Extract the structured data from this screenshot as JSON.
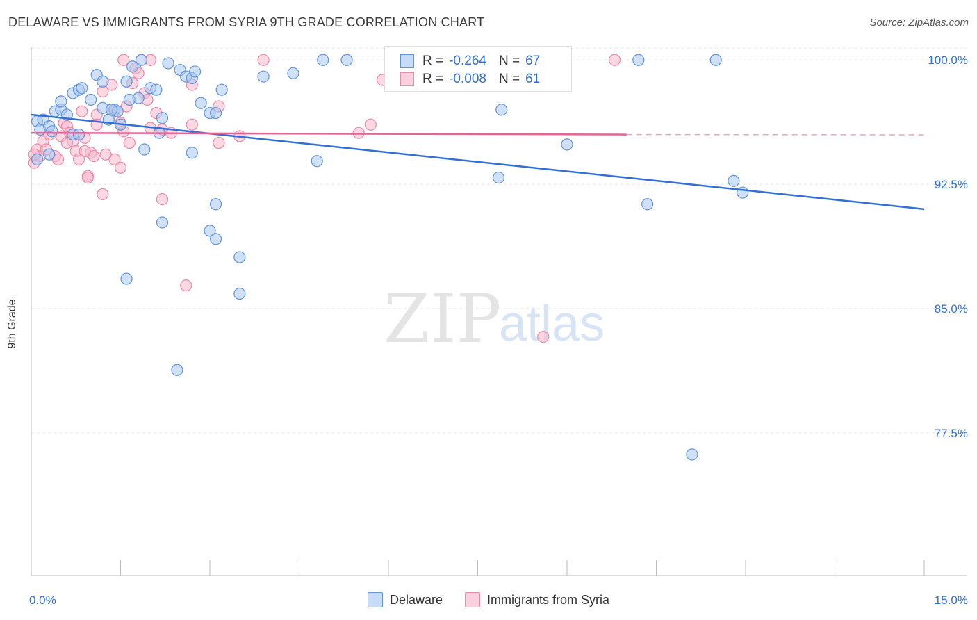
{
  "title": "DELAWARE VS IMMIGRANTS FROM SYRIA 9TH GRADE CORRELATION CHART",
  "source": "Source: ZipAtlas.com",
  "watermark": {
    "zip": "ZIP",
    "atlas": "atlas"
  },
  "legend_stats": [
    {
      "r_label": "R =",
      "r_value": "-0.264",
      "n_label": "N =",
      "n_value": "67"
    },
    {
      "r_label": "R =",
      "r_value": "-0.008",
      "n_label": "N =",
      "n_value": "61"
    }
  ],
  "colors": {
    "delaware_fill": "#a9c8f0",
    "delaware_stroke": "#5f93d8",
    "delaware_line": "#2f6fd6",
    "syria_fill": "#f7b8cb",
    "syria_stroke": "#e98aa8",
    "syria_line": "#e06592",
    "axis_label": "#2f6fd6",
    "grid": "#e3e3e3"
  },
  "chart_data": {
    "type": "scatter",
    "xlabel": "",
    "ylabel": "9th Grade",
    "xlim": [
      0,
      15
    ],
    "ylim": [
      68.9,
      101.1
    ],
    "x_tick_labels": [
      {
        "value": 0,
        "label": "0.0%"
      },
      {
        "value": 15,
        "label": "15.0%"
      }
    ],
    "y_ticks": [
      {
        "value": 100.0,
        "label": "100.0%"
      },
      {
        "value": 92.5,
        "label": "92.5%"
      },
      {
        "value": 85.0,
        "label": "85.0%"
      },
      {
        "value": 77.5,
        "label": "77.5%"
      }
    ],
    "grid": true,
    "series": [
      {
        "name": "Delaware",
        "trend": {
          "x": [
            0.0,
            15.0
          ],
          "y": [
            96.7,
            91.0
          ],
          "style": "solid"
        },
        "points": [
          [
            0.1,
            96.3
          ],
          [
            0.15,
            95.8
          ],
          [
            0.2,
            96.4
          ],
          [
            0.3,
            96.0
          ],
          [
            0.35,
            95.7
          ],
          [
            0.4,
            96.9
          ],
          [
            0.5,
            97.0
          ],
          [
            0.6,
            96.7
          ],
          [
            0.5,
            97.5
          ],
          [
            0.7,
            98.0
          ],
          [
            0.8,
            98.2
          ],
          [
            0.85,
            98.3
          ],
          [
            0.7,
            95.5
          ],
          [
            0.8,
            95.5
          ],
          [
            1.0,
            97.6
          ],
          [
            1.1,
            99.1
          ],
          [
            1.2,
            98.7
          ],
          [
            1.3,
            96.4
          ],
          [
            1.2,
            97.1
          ],
          [
            1.4,
            97.0
          ],
          [
            1.45,
            96.9
          ],
          [
            1.5,
            96.1
          ],
          [
            1.6,
            98.7
          ],
          [
            1.65,
            97.6
          ],
          [
            1.7,
            99.6
          ],
          [
            1.8,
            97.7
          ],
          [
            1.85,
            100.0
          ],
          [
            1.9,
            94.6
          ],
          [
            2.0,
            98.3
          ],
          [
            2.1,
            98.2
          ],
          [
            2.15,
            95.6
          ],
          [
            2.2,
            96.5
          ],
          [
            2.3,
            99.8
          ],
          [
            2.5,
            99.4
          ],
          [
            2.6,
            99.0
          ],
          [
            2.7,
            98.9
          ],
          [
            2.75,
            99.3
          ],
          [
            2.7,
            94.4
          ],
          [
            2.85,
            97.4
          ],
          [
            3.0,
            96.8
          ],
          [
            3.1,
            96.8
          ],
          [
            3.2,
            98.2
          ],
          [
            3.1,
            91.3
          ],
          [
            3.0,
            89.7
          ],
          [
            3.1,
            89.2
          ],
          [
            3.5,
            88.1
          ],
          [
            3.5,
            85.9
          ],
          [
            3.9,
            99.0
          ],
          [
            4.4,
            99.2
          ],
          [
            4.9,
            100.0
          ],
          [
            5.3,
            100.0
          ],
          [
            4.8,
            93.9
          ],
          [
            1.6,
            86.8
          ],
          [
            2.2,
            90.2
          ],
          [
            2.45,
            81.3
          ],
          [
            7.9,
            97.0
          ],
          [
            7.85,
            92.9
          ],
          [
            9.0,
            94.9
          ],
          [
            10.2,
            100.0
          ],
          [
            10.35,
            91.3
          ],
          [
            11.5,
            100.0
          ],
          [
            11.8,
            92.7
          ],
          [
            11.95,
            92.0
          ],
          [
            11.1,
            76.2
          ],
          [
            0.1,
            94.0
          ],
          [
            0.3,
            94.3
          ],
          [
            1.35,
            97.0
          ]
        ]
      },
      {
        "name": "Immigrants from Syria",
        "trend": {
          "x": [
            0.0,
            10.0
          ],
          "y": [
            95.6,
            95.5
          ],
          "style": "solid",
          "dashed_to": 15.0
        },
        "points": [
          [
            0.05,
            93.8
          ],
          [
            0.1,
            94.6
          ],
          [
            0.15,
            94.2
          ],
          [
            0.2,
            95.1
          ],
          [
            0.25,
            94.6
          ],
          [
            0.3,
            95.5
          ],
          [
            0.4,
            94.2
          ],
          [
            0.45,
            94.0
          ],
          [
            0.5,
            95.4
          ],
          [
            0.55,
            96.2
          ],
          [
            0.6,
            96.0
          ],
          [
            0.65,
            95.6
          ],
          [
            0.7,
            95.1
          ],
          [
            0.75,
            94.5
          ],
          [
            0.8,
            94.0
          ],
          [
            0.85,
            96.9
          ],
          [
            0.9,
            95.3
          ],
          [
            0.95,
            93.0
          ],
          [
            1.0,
            94.4
          ],
          [
            1.05,
            94.2
          ],
          [
            1.1,
            96.7
          ],
          [
            1.2,
            98.1
          ],
          [
            1.25,
            94.3
          ],
          [
            1.35,
            98.5
          ],
          [
            1.4,
            96.9
          ],
          [
            1.5,
            96.2
          ],
          [
            1.55,
            95.7
          ],
          [
            1.6,
            97.2
          ],
          [
            1.65,
            95.0
          ],
          [
            1.7,
            98.6
          ],
          [
            1.75,
            99.5
          ],
          [
            1.8,
            99.2
          ],
          [
            1.9,
            98.0
          ],
          [
            1.95,
            97.6
          ],
          [
            2.0,
            95.9
          ],
          [
            2.1,
            96.8
          ],
          [
            2.2,
            95.8
          ],
          [
            2.35,
            95.6
          ],
          [
            1.55,
            100.0
          ],
          [
            2.0,
            100.0
          ],
          [
            2.7,
            98.5
          ],
          [
            2.7,
            96.1
          ],
          [
            3.15,
            97.2
          ],
          [
            3.15,
            95.0
          ],
          [
            3.5,
            95.4
          ],
          [
            3.9,
            100.0
          ],
          [
            5.7,
            96.1
          ],
          [
            5.9,
            98.8
          ],
          [
            5.5,
            95.6
          ],
          [
            9.8,
            100.0
          ],
          [
            1.2,
            91.9
          ],
          [
            2.2,
            91.6
          ],
          [
            1.5,
            93.5
          ],
          [
            0.95,
            92.9
          ],
          [
            2.6,
            86.4
          ],
          [
            8.6,
            83.3
          ],
          [
            0.05,
            94.3
          ],
          [
            0.9,
            94.5
          ],
          [
            1.1,
            96.1
          ],
          [
            1.4,
            94.0
          ],
          [
            0.6,
            95.0
          ]
        ]
      }
    ]
  },
  "bottom_legend": [
    {
      "label": "Delaware"
    },
    {
      "label": "Immigrants from Syria"
    }
  ]
}
